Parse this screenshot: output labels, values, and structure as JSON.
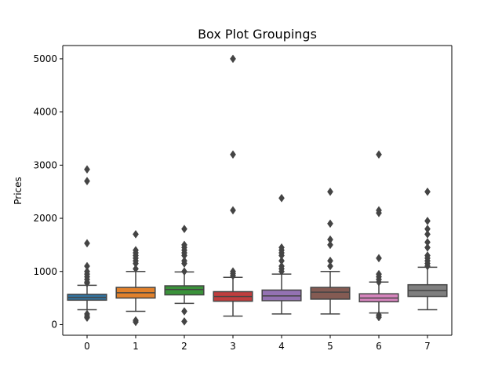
{
  "chart_data": {
    "type": "box",
    "title": "Box Plot Groupings",
    "xlabel": "",
    "ylabel": "Prices",
    "xlim": [
      -0.5,
      7.5
    ],
    "ylim": [
      -200,
      5250
    ],
    "yticks": [
      0,
      1000,
      2000,
      3000,
      4000,
      5000
    ],
    "ytick_labels": [
      "0",
      "1000",
      "2000",
      "3000",
      "4000",
      "5000"
    ],
    "grid": false,
    "legend": "none",
    "categories": [
      "0",
      "1",
      "2",
      "3",
      "4",
      "5",
      "6",
      "7"
    ],
    "groups": [
      {
        "category": "0",
        "color": "#3274a1",
        "whisker_low": 280,
        "q1": 460,
        "median": 510,
        "q3": 570,
        "whisker_high": 740,
        "outliers": [
          2920,
          2700,
          1530,
          1100,
          1000,
          950,
          900,
          850,
          800,
          780,
          200,
          160,
          130
        ]
      },
      {
        "category": "1",
        "color": "#e1812c",
        "whisker_low": 250,
        "q1": 500,
        "median": 600,
        "q3": 700,
        "whisker_high": 1000,
        "outliers": [
          1700,
          1400,
          1350,
          1300,
          1250,
          1200,
          1150,
          1050,
          80,
          50
        ]
      },
      {
        "category": "2",
        "color": "#3a923a",
        "whisker_low": 400,
        "q1": 560,
        "median": 660,
        "q3": 730,
        "whisker_high": 990,
        "outliers": [
          1800,
          1500,
          1450,
          1400,
          1350,
          1300,
          1200,
          1150,
          1000,
          250,
          60
        ]
      },
      {
        "category": "3",
        "color": "#c03d3e",
        "whisker_low": 160,
        "q1": 440,
        "median": 530,
        "q3": 620,
        "whisker_high": 890,
        "outliers": [
          5000,
          3200,
          2150,
          1000,
          960,
          920
        ]
      },
      {
        "category": "4",
        "color": "#9372b2",
        "whisker_low": 200,
        "q1": 450,
        "median": 540,
        "q3": 650,
        "whisker_high": 950,
        "outliers": [
          2380,
          1450,
          1400,
          1350,
          1300,
          1200,
          1100,
          1050,
          1000
        ]
      },
      {
        "category": "5",
        "color": "#845b53",
        "whisker_low": 200,
        "q1": 480,
        "median": 610,
        "q3": 700,
        "whisker_high": 1000,
        "outliers": [
          2500,
          1900,
          1600,
          1500,
          1200,
          1100
        ]
      },
      {
        "category": "6",
        "color": "#d684bd",
        "whisker_low": 220,
        "q1": 430,
        "median": 500,
        "q3": 580,
        "whisker_high": 800,
        "outliers": [
          3200,
          2150,
          2100,
          1250,
          950,
          900,
          850,
          800,
          180,
          140
        ]
      },
      {
        "category": "7",
        "color": "#7f7f7f",
        "whisker_low": 280,
        "q1": 530,
        "median": 640,
        "q3": 750,
        "whisker_high": 1080,
        "outliers": [
          2500,
          1950,
          1800,
          1700,
          1550,
          1450,
          1300,
          1250,
          1200,
          1150,
          1100
        ]
      }
    ]
  }
}
